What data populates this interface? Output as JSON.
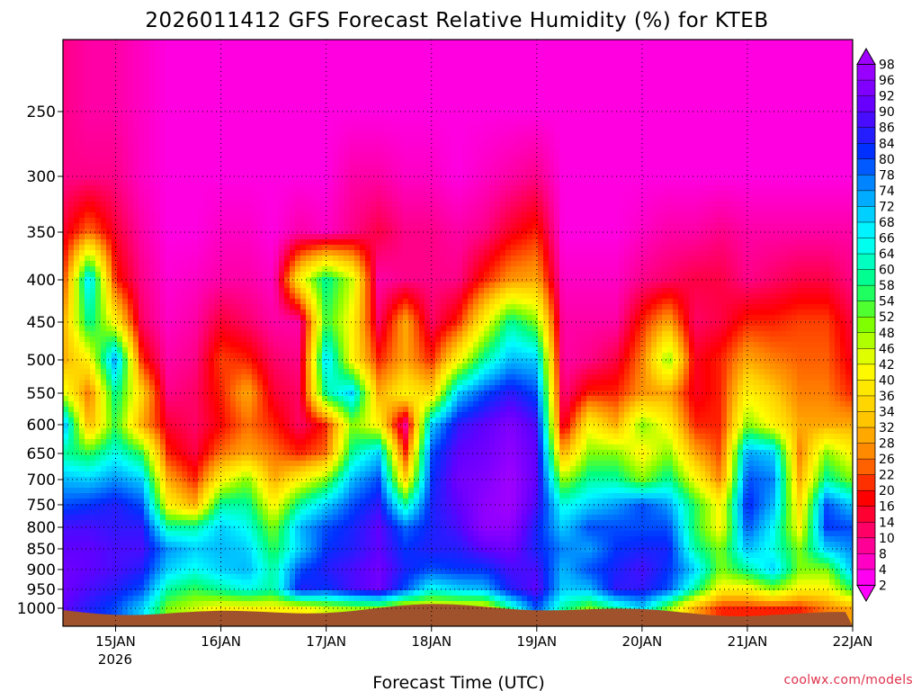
{
  "chart_data": {
    "type": "heatmap",
    "title": "2026011412 GFS Forecast Relative Humidity (%) for KTEB",
    "xlabel": "Forecast Time (UTC)",
    "ylabel": "",
    "x_ticks": [
      "15JAN",
      "16JAN",
      "17JAN",
      "18JAN",
      "19JAN",
      "20JAN",
      "21JAN",
      "22JAN"
    ],
    "x_year_label": "2026",
    "xlim": [
      "2026-01-14T12",
      "2026-01-22T00"
    ],
    "y_ticks": [
      250,
      300,
      350,
      400,
      450,
      500,
      550,
      600,
      650,
      700,
      750,
      800,
      850,
      900,
      950,
      1000
    ],
    "ylim": [
      1000,
      200
    ],
    "y_scale": "log-pressure",
    "grid": true,
    "colorbar_ticks": [
      98,
      96,
      92,
      90,
      86,
      84,
      80,
      78,
      74,
      72,
      68,
      66,
      64,
      60,
      58,
      54,
      52,
      48,
      46,
      42,
      40,
      36,
      34,
      32,
      28,
      26,
      22,
      20,
      16,
      14,
      10,
      8,
      4,
      2
    ],
    "colorbar_placement": "right",
    "colormap": [
      "#ff00ff",
      "#ff0088",
      "#ff0000",
      "#ff8000",
      "#ffd000",
      "#ffff00",
      "#80ff00",
      "#00ff80",
      "#00ffff",
      "#00a0ff",
      "#0030ff",
      "#6000ff",
      "#a000ff"
    ],
    "terrain_color": "#a0522d",
    "rh_columns": [
      {
        "x": "2026-01-14T12",
        "rh": [
          90,
          92,
          92,
          90,
          88,
          80,
          72,
          60,
          75,
          45,
          30,
          30,
          20,
          15,
          10,
          10
        ]
      },
      {
        "x": "2026-01-14T18",
        "rh": [
          85,
          88,
          90,
          90,
          88,
          82,
          70,
          55,
          30,
          25,
          40,
          60,
          70,
          25,
          10,
          8
        ]
      },
      {
        "x": "2026-01-15T00",
        "rh": [
          80,
          85,
          88,
          88,
          86,
          85,
          75,
          65,
          55,
          60,
          75,
          40,
          20,
          15,
          10,
          8
        ]
      },
      {
        "x": "2026-01-15T06",
        "rh": [
          70,
          80,
          85,
          88,
          86,
          80,
          70,
          55,
          30,
          35,
          20,
          12,
          10,
          8,
          6,
          6
        ]
      },
      {
        "x": "2026-01-15T12",
        "rh": [
          50,
          60,
          70,
          75,
          60,
          40,
          30,
          20,
          15,
          10,
          8,
          6,
          5,
          4,
          4,
          4
        ]
      },
      {
        "x": "2026-01-15T18",
        "rh": [
          45,
          55,
          65,
          70,
          60,
          30,
          20,
          14,
          12,
          12,
          10,
          8,
          6,
          4,
          4,
          4
        ]
      },
      {
        "x": "2026-01-16T00",
        "rh": [
          40,
          60,
          70,
          72,
          70,
          60,
          40,
          25,
          18,
          20,
          22,
          15,
          8,
          6,
          4,
          4
        ]
      },
      {
        "x": "2026-01-16T06",
        "rh": [
          40,
          65,
          72,
          70,
          65,
          60,
          50,
          30,
          25,
          30,
          20,
          12,
          8,
          6,
          4,
          4
        ]
      },
      {
        "x": "2026-01-16T12",
        "rh": [
          40,
          60,
          60,
          55,
          50,
          40,
          30,
          25,
          20,
          15,
          12,
          8,
          6,
          4,
          4,
          4
        ]
      },
      {
        "x": "2026-01-16T18",
        "rh": [
          40,
          85,
          80,
          70,
          72,
          60,
          40,
          20,
          12,
          12,
          10,
          8,
          40,
          8,
          4,
          4
        ]
      },
      {
        "x": "2026-01-17T00",
        "rh": [
          45,
          82,
          85,
          82,
          80,
          70,
          50,
          25,
          20,
          60,
          70,
          55,
          60,
          6,
          4,
          4
        ]
      },
      {
        "x": "2026-01-17T06",
        "rh": [
          48,
          88,
          88,
          85,
          84,
          80,
          72,
          60,
          50,
          70,
          40,
          40,
          45,
          10,
          8,
          4
        ]
      },
      {
        "x": "2026-01-17T12",
        "rh": [
          50,
          92,
          92,
          90,
          90,
          86,
          80,
          70,
          40,
          30,
          20,
          12,
          8,
          14,
          8,
          4
        ]
      },
      {
        "x": "2026-01-17T18",
        "rh": [
          40,
          80,
          84,
          82,
          78,
          60,
          35,
          20,
          8,
          40,
          30,
          30,
          10,
          10,
          6,
          4
        ]
      },
      {
        "x": "2026-01-18T00",
        "rh": [
          40,
          65,
          80,
          85,
          84,
          84,
          82,
          80,
          70,
          35,
          20,
          12,
          10,
          10,
          6,
          4
        ]
      },
      {
        "x": "2026-01-18T06",
        "rh": [
          40,
          70,
          82,
          85,
          88,
          90,
          92,
          90,
          86,
          70,
          40,
          20,
          10,
          8,
          4,
          4
        ]
      },
      {
        "x": "2026-01-18T12",
        "rh": [
          40,
          72,
          82,
          90,
          96,
          96,
          94,
          92,
          90,
          80,
          60,
          40,
          20,
          10,
          6,
          4
        ]
      },
      {
        "x": "2026-01-18T18",
        "rh": [
          60,
          85,
          88,
          92,
          96,
          98,
          98,
          96,
          94,
          86,
          72,
          60,
          28,
          16,
          8,
          4
        ]
      },
      {
        "x": "2026-01-19T00",
        "rh": [
          80,
          90,
          88,
          84,
          84,
          88,
          90,
          90,
          88,
          80,
          70,
          50,
          30,
          20,
          10,
          4
        ]
      },
      {
        "x": "2026-01-19T06",
        "rh": [
          60,
          70,
          72,
          76,
          70,
          64,
          48,
          30,
          14,
          10,
          8,
          8,
          6,
          4,
          4,
          4
        ]
      },
      {
        "x": "2026-01-19T12",
        "rh": [
          50,
          72,
          80,
          74,
          80,
          70,
          60,
          50,
          40,
          20,
          10,
          8,
          6,
          4,
          4,
          4
        ]
      },
      {
        "x": "2026-01-19T18",
        "rh": [
          60,
          86,
          84,
          82,
          80,
          74,
          60,
          50,
          30,
          20,
          14,
          8,
          6,
          4,
          4,
          4
        ]
      },
      {
        "x": "2026-01-20T00",
        "rh": [
          70,
          86,
          88,
          84,
          80,
          80,
          50,
          40,
          50,
          28,
          26,
          20,
          10,
          6,
          4,
          4
        ]
      },
      {
        "x": "2026-01-20T06",
        "rh": [
          50,
          80,
          82,
          84,
          80,
          74,
          60,
          50,
          40,
          30,
          50,
          30,
          12,
          8,
          4,
          4
        ]
      },
      {
        "x": "2026-01-20T12",
        "rh": [
          30,
          60,
          70,
          60,
          56,
          56,
          42,
          30,
          20,
          16,
          16,
          12,
          14,
          8,
          4,
          4
        ]
      },
      {
        "x": "2026-01-20T18",
        "rh": [
          20,
          40,
          50,
          50,
          40,
          40,
          26,
          22,
          20,
          20,
          20,
          14,
          14,
          10,
          4,
          4
        ]
      },
      {
        "x": "2026-01-21T00",
        "rh": [
          20,
          40,
          60,
          72,
          80,
          84,
          80,
          74,
          50,
          40,
          30,
          20,
          10,
          8,
          4,
          4
        ]
      },
      {
        "x": "2026-01-21T06",
        "rh": [
          20,
          50,
          70,
          64,
          66,
          72,
          76,
          70,
          40,
          34,
          26,
          20,
          12,
          8,
          4,
          4
        ]
      },
      {
        "x": "2026-01-21T12",
        "rh": [
          20,
          40,
          50,
          50,
          40,
          36,
          30,
          26,
          30,
          26,
          24,
          22,
          14,
          8,
          4,
          4
        ]
      },
      {
        "x": "2026-01-21T18",
        "rh": [
          26,
          40,
          50,
          70,
          82,
          80,
          60,
          50,
          30,
          26,
          24,
          22,
          14,
          8,
          4,
          4
        ]
      },
      {
        "x": "2026-01-22T00",
        "rh": [
          30,
          56,
          72,
          76,
          80,
          70,
          50,
          40,
          30,
          20,
          16,
          14,
          10,
          8,
          4,
          4
        ]
      }
    ],
    "rh_levels": [
      1000,
      950,
      900,
      850,
      800,
      750,
      700,
      650,
      600,
      550,
      500,
      450,
      400,
      350,
      300,
      250
    ]
  },
  "credit": "coolwx.com/models"
}
